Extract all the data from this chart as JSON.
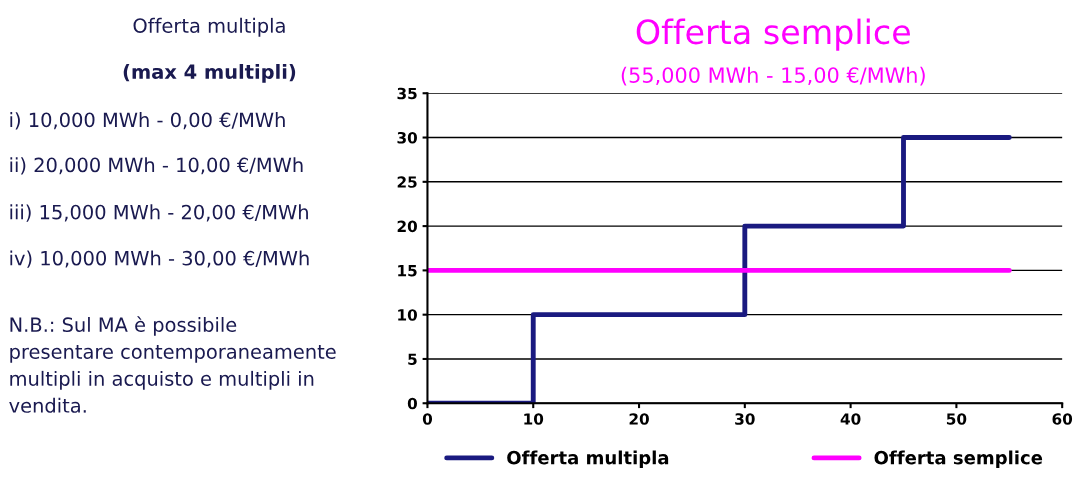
{
  "chart_data": {
    "type": "line",
    "title": "Offerta semplice",
    "subtitle": "(55,000 MWh - 15,00 €/MWh)",
    "annotations": [
      "Offerta multipla",
      "(max 4 multipli)",
      "i) 10,000 MWh - 0,00 €/MWh",
      "ii) 20,000 MWh - 10,00 €/MWh",
      "iii) 15,000 MWh - 20,00 €/MWh",
      "iv) 10,000 MWh - 30,00 €/MWh",
      "N.B.: Sul MA è possibile\npresentare contemporaneamente\nmultipli in acquisto e multipli in\nvendita."
    ],
    "series": [
      {
        "name": "Offerta multipla",
        "type": "step",
        "color": "#1a1a80",
        "x": [
          0,
          10,
          30,
          45,
          55
        ],
        "values": [
          0,
          10,
          20,
          30,
          30
        ]
      },
      {
        "name": "Offerta semplice",
        "color": "#ff00ff",
        "x": [
          0,
          55
        ],
        "values": [
          15,
          15
        ]
      }
    ],
    "xlim": [
      0,
      60
    ],
    "xticks": [
      0,
      10,
      20,
      30,
      40,
      50,
      60
    ],
    "ylim": [
      0,
      35
    ],
    "yticks": [
      0,
      5,
      10,
      15,
      20,
      25,
      30,
      35
    ],
    "grid": "y",
    "legend": "bottom",
    "marker": "none",
    "line_style": "solid"
  }
}
